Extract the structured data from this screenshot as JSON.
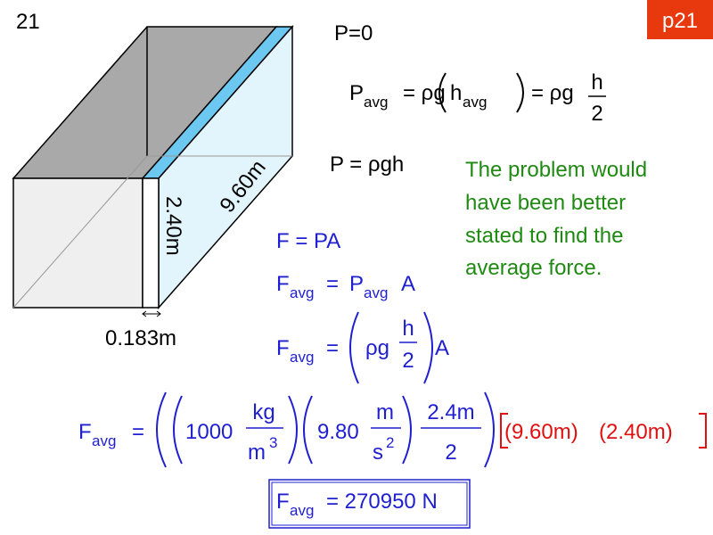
{
  "slide_number": "21",
  "tag": "p21",
  "figure": {
    "height": "2.40m",
    "length": "9.60m",
    "width": "0.183m"
  },
  "top_pressure": "P=0",
  "p_avg": {
    "lhs": "P",
    "lhs_sub": "avg",
    "eq1": "= ρg",
    "h": "h",
    "h_sub": "avg",
    "eq2": "= ρg",
    "num": "h",
    "den": "2"
  },
  "p": "P = ρgh",
  "note": [
    "The problem would",
    "have been better",
    "stated to find the",
    "average force."
  ],
  "f_pa": "F = PA",
  "f_avg1": {
    "lhs": "F",
    "sub": "avg",
    "eq": "=",
    "p": "P",
    "p_sub": "avg",
    "a": "A"
  },
  "f_avg2": {
    "lhs": "F",
    "sub": "avg",
    "eq": "=",
    "rho_g": "ρg",
    "num": "h",
    "den": "2",
    "a": "A"
  },
  "f_avg3": {
    "lhs": "F",
    "sub": "avg",
    "eq": "=",
    "mass": "1000",
    "kg": "kg",
    "m": "m",
    "exp3": "3",
    "g": "9.80",
    "m2": "m",
    "s": "s",
    "exp2": "2",
    "h": "2.4m",
    "den": "2",
    "l": "(9.60m)",
    "w": "(2.40m)"
  },
  "result": {
    "lhs": "F",
    "sub": "avg",
    "eq": "= 270950 N"
  }
}
